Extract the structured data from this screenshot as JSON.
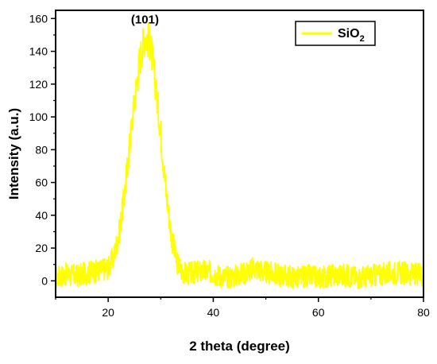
{
  "chart_data": {
    "type": "line",
    "xlabel": "2 theta (degree)",
    "ylabel": "Intensity (a.u.)",
    "xlim": [
      10,
      80
    ],
    "ylim": [
      -10,
      165
    ],
    "xticks": [
      20,
      40,
      60,
      80
    ],
    "yticks": [
      0,
      20,
      40,
      60,
      80,
      100,
      120,
      140,
      160
    ],
    "grid": false,
    "legend": {
      "position": "top-right"
    },
    "series": [
      {
        "name": "SiO",
        "name_subscript": "2",
        "color": "#ffff00",
        "x": [
          10,
          12,
          14,
          16,
          18,
          20,
          21,
          22,
          23,
          24,
          25,
          26,
          27,
          28,
          29,
          30,
          31,
          32,
          33,
          34,
          35,
          36,
          38,
          40,
          42,
          44,
          46,
          48,
          50,
          52,
          54,
          56,
          58,
          60,
          62,
          64,
          66,
          68,
          70,
          72,
          74,
          76,
          78,
          80
        ],
        "y": [
          2,
          4,
          3,
          5,
          6,
          8,
          14,
          28,
          50,
          80,
          110,
          135,
          150,
          145,
          120,
          90,
          55,
          28,
          12,
          6,
          4,
          5,
          6,
          5,
          2,
          3,
          5,
          8,
          5,
          4,
          3,
          2,
          3,
          2,
          3,
          4,
          3,
          2,
          3,
          4,
          5,
          5,
          4,
          4
        ]
      }
    ],
    "annotations": [
      {
        "text": "(101)",
        "x": 27,
        "y": 157
      }
    ]
  }
}
